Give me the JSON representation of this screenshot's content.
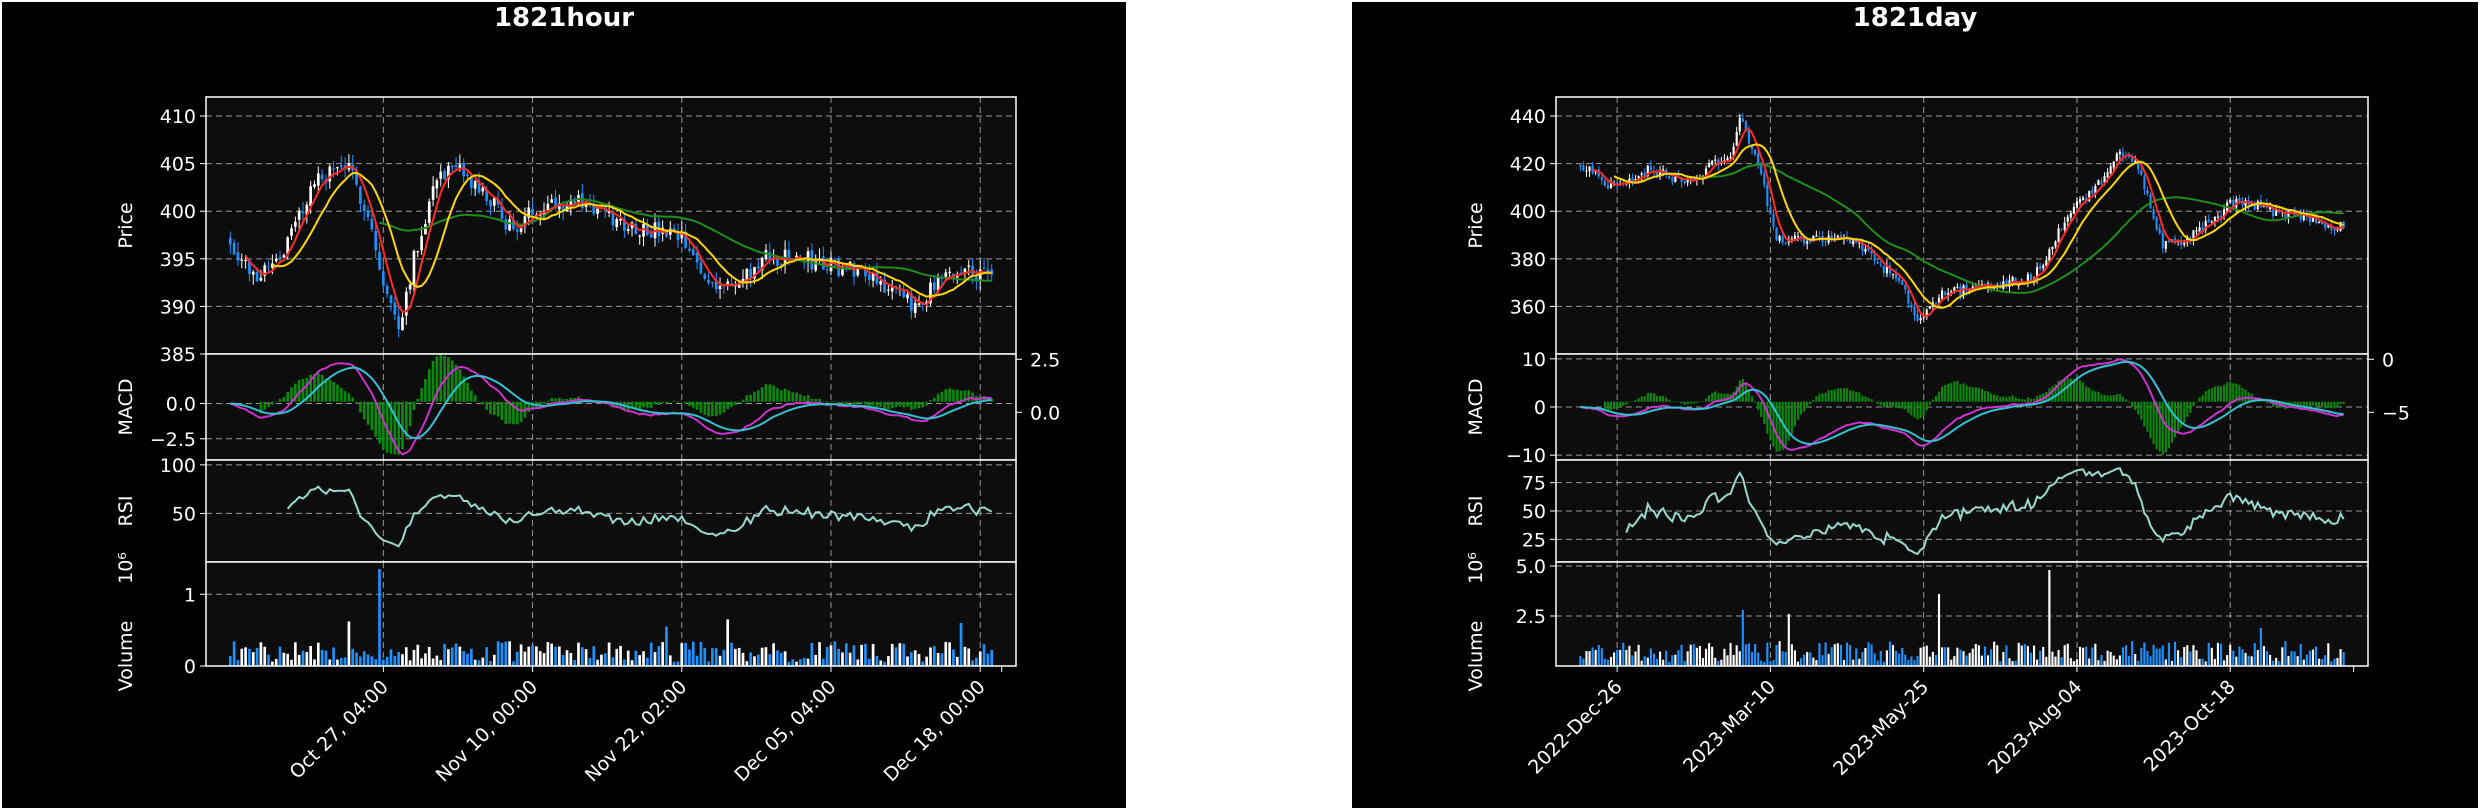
{
  "page_background": "#ffffff",
  "colors": {
    "figure_bg": "#000000",
    "axes_bg": "#0d0d0d",
    "up": "#ffffff",
    "down": "#1e90ff",
    "ma_short": "#ff2a2a",
    "ma_mid": "#ffd700",
    "ma_long": "#1e8c1e",
    "macd": "#cc33cc",
    "signal": "#33c0d0",
    "hist": "#0a8a0a",
    "rsi": "#9ad8cc",
    "grid": "#bbbbbb"
  },
  "chart_data": [
    {
      "type": "candlestick",
      "title": "1821hour",
      "xlabel": "",
      "x_ticks": [
        "Oct 27, 04:00",
        "Nov 10, 00:00",
        "Nov 22, 02:00",
        "Dec 05, 04:00",
        "Dec 18, 00:00"
      ],
      "n_bars": 200,
      "price": {
        "ylabel": "Price",
        "ylim": [
          385,
          412
        ],
        "yticks": [
          "410",
          "405",
          "400",
          "395",
          "390",
          "385"
        ],
        "path": [
          [
            0,
            397
          ],
          [
            6,
            393
          ],
          [
            14,
            396
          ],
          [
            22,
            403
          ],
          [
            30,
            405
          ],
          [
            36,
            400
          ],
          [
            40,
            392
          ],
          [
            44,
            388
          ],
          [
            48,
            395
          ],
          [
            54,
            404
          ],
          [
            60,
            404
          ],
          [
            68,
            401
          ],
          [
            74,
            398
          ],
          [
            82,
            401
          ],
          [
            92,
            401
          ],
          [
            100,
            399
          ],
          [
            110,
            398
          ],
          [
            118,
            397
          ],
          [
            124,
            393
          ],
          [
            132,
            392
          ],
          [
            140,
            395
          ],
          [
            150,
            395
          ],
          [
            160,
            394
          ],
          [
            166,
            394
          ],
          [
            172,
            392
          ],
          [
            178,
            390
          ],
          [
            184,
            392
          ],
          [
            192,
            394
          ],
          [
            199,
            393
          ]
        ],
        "volatility": 1.2
      },
      "macd": {
        "ylabel": "MACD",
        "yticks_left": [
          "0.0",
          "−2.5"
        ],
        "yticks_right": [
          "2.5",
          "0.0"
        ],
        "ylim": [
          -4,
          3.5
        ]
      },
      "rsi": {
        "ylabel": "RSI",
        "yticks": [
          "100",
          "50"
        ],
        "ylim": [
          0,
          105
        ]
      },
      "volume": {
        "ylabel": "Volume",
        "exponent": "10⁶",
        "yticks": [
          "1",
          "0"
        ],
        "ylim": [
          0,
          1.45
        ],
        "spike": [
          [
            39,
            1.35
          ],
          [
            31,
            0.62
          ],
          [
            130,
            0.65
          ],
          [
            114,
            0.55
          ],
          [
            191,
            0.6
          ]
        ]
      },
      "grid": true
    },
    {
      "type": "candlestick",
      "title": "1821day",
      "xlabel": "",
      "x_ticks": [
        "2022-Dec-26",
        "2023-Mar-10",
        "2023-May-25",
        "2023-Aug-04",
        "2023-Oct-18"
      ],
      "n_bars": 250,
      "price": {
        "ylabel": "Price",
        "ylim": [
          340,
          448
        ],
        "yticks": [
          "440",
          "420",
          "400",
          "380",
          "360"
        ],
        "path": [
          [
            0,
            420
          ],
          [
            10,
            410
          ],
          [
            22,
            417
          ],
          [
            36,
            413
          ],
          [
            50,
            425
          ],
          [
            52,
            440
          ],
          [
            58,
            420
          ],
          [
            64,
            388
          ],
          [
            74,
            388
          ],
          [
            88,
            388
          ],
          [
            96,
            380
          ],
          [
            104,
            370
          ],
          [
            110,
            355
          ],
          [
            118,
            365
          ],
          [
            130,
            368
          ],
          [
            148,
            372
          ],
          [
            160,
            400
          ],
          [
            172,
            415
          ],
          [
            176,
            425
          ],
          [
            182,
            418
          ],
          [
            190,
            385
          ],
          [
            200,
            390
          ],
          [
            214,
            405
          ],
          [
            226,
            400
          ],
          [
            246,
            394
          ]
        ],
        "volatility": 2.8
      },
      "macd": {
        "ylabel": "MACD",
        "yticks_left": [
          "10",
          "0",
          "−10"
        ],
        "yticks_right": [
          "0",
          "−5"
        ],
        "ylim": [
          -11,
          11
        ]
      },
      "rsi": {
        "ylabel": "RSI",
        "yticks": [
          "75",
          "50",
          "25"
        ],
        "ylim": [
          5,
          95
        ]
      },
      "volume": {
        "ylabel": "Volume",
        "exponent": "10⁶",
        "yticks": [
          "5.0",
          "2.5"
        ],
        "ylim": [
          0,
          5.2
        ],
        "spike": [
          [
            153,
            4.8
          ],
          [
            117,
            3.6
          ],
          [
            53,
            2.8
          ],
          [
            68,
            2.6
          ],
          [
            222,
            1.9
          ]
        ]
      },
      "grid": true
    }
  ]
}
